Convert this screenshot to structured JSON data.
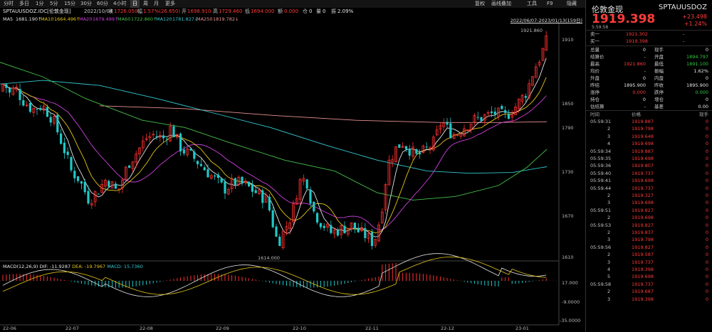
{
  "toolbar": {
    "items": [
      "分时",
      "多日",
      "1分",
      "5分",
      "15分",
      "30分",
      "60分",
      "4小时",
      "日",
      "周",
      "月",
      "更多"
    ],
    "active": "日",
    "right": [
      "复权",
      "画线叠加",
      "工具",
      "F9",
      "隐藏"
    ]
  },
  "info": {
    "symbol": "SPTAUUSDOZ.IDC[伦敦金现]",
    "date": "2022/10/04",
    "close_label": "收",
    "close": "1726.050",
    "change_label": "幅",
    "change": "1.57%(26.650)",
    "open_label": "开",
    "open": "1698.910",
    "high_label": "高",
    "high": "1729.460",
    "low_label": "低",
    "low": "1694.000",
    "vol_label": "额",
    "vol": "0.000",
    "pos_label": "仓",
    "pos": "0",
    "qty_label": "量",
    "qty": "0",
    "amp_label": "振",
    "amp": "2.09%"
  },
  "ma": [
    {
      "name": "MA5",
      "value": "1681.190↑",
      "color": "#e6e6e6"
    },
    {
      "name": "MA10",
      "value": "1664.496↑",
      "color": "#e6c619"
    },
    {
      "name": "MA20",
      "value": "1679.499↑",
      "color": "#d040e0"
    },
    {
      "name": "MA60",
      "value": "1722.860↑",
      "color": "#45c04a"
    },
    {
      "name": "MA120",
      "value": "1781.827↓",
      "color": "#34c8d0"
    },
    {
      "name": "MA250",
      "value": "1819.782↓",
      "color": "#e89090"
    }
  ],
  "date_range": "2022/06/07-2023/01/13(159日)",
  "annotations": {
    "high": "1921.860",
    "low": "1614.000"
  },
  "price_axis": [
    "1910",
    "1850",
    "1790",
    "1730",
    "1670",
    "1610"
  ],
  "macd": {
    "label": "MACD(12,26,9)",
    "dif": "DIF: -11.9287",
    "dea": "DEA: -19.7967",
    "macd": "MACD: 15.7360",
    "axis": [
      "17.000",
      "-9.0000",
      "-35.0000"
    ]
  },
  "x_axis": [
    "22-06",
    "22-07",
    "22-08",
    "22-09",
    "22-10",
    "22-11",
    "22-12",
    "23-01"
  ],
  "panel": {
    "title": "伦敦金现",
    "code": "SPTAUUSDOZ",
    "price": "1919.398",
    "change": "+23.498",
    "change_pct": "+1.24%",
    "time": "5:59:58",
    "bid_label": "卖一",
    "bid": "1921.302",
    "bid_vol": "-",
    "ask_label": "买一",
    "ask": "1919.398",
    "ask_vol": "-",
    "stats": [
      [
        "总量",
        "0",
        "现手",
        "0"
      ],
      [
        "结算价",
        "-",
        "开盘",
        "1894.797"
      ],
      [
        "最高",
        "1921.860",
        "最低",
        "1891.100"
      ],
      [
        "均价",
        "-",
        "振幅",
        "1.62%"
      ],
      [
        "外盘",
        "0",
        "内盘",
        "0"
      ],
      [
        "昨结",
        "1895.900",
        "昨收",
        "1895.900"
      ],
      [
        "涨停",
        "0.000",
        "跌停",
        "0.000"
      ],
      [
        "持仓",
        "0",
        "增仓",
        "0"
      ],
      [
        "估结算",
        "-",
        "基差",
        "0.00"
      ]
    ],
    "tick_headers": [
      "时间",
      "价格",
      "现手"
    ],
    "ticks": [
      [
        "05:59:31",
        "1919.887",
        "0"
      ],
      [
        "2",
        "1919.798",
        "0"
      ],
      [
        "3",
        "1919.648",
        "0"
      ],
      [
        "4",
        "1919.698",
        "0"
      ],
      [
        "05:59:34",
        "1919.887",
        "0"
      ],
      [
        "05:59:35",
        "1919.698",
        "0"
      ],
      [
        "05:59:36",
        "1919.807",
        "0"
      ],
      [
        "05:59:40",
        "1919.737",
        "0"
      ],
      [
        "05:59:41",
        "1919.698",
        "0"
      ],
      [
        "05:59:44",
        "1919.737",
        "0"
      ],
      [
        "2",
        "1919.327",
        "0"
      ],
      [
        "3",
        "1919.698",
        "0"
      ],
      [
        "05:59:51",
        "1919.827",
        "0"
      ],
      [
        "2",
        "1919.698",
        "0"
      ],
      [
        "05:59:53",
        "1919.827",
        "0"
      ],
      [
        "2",
        "1919.837",
        "0"
      ],
      [
        "3",
        "1919.798",
        "0"
      ],
      [
        "05:59:56",
        "1919.827",
        "0"
      ],
      [
        "2",
        "1919.587",
        "0"
      ],
      [
        "3",
        "1919.737",
        "0"
      ],
      [
        "4",
        "1919.398",
        "0"
      ],
      [
        "5",
        "1919.698",
        "0"
      ],
      [
        "05:59:58",
        "1919.737",
        "0"
      ],
      [
        "2",
        "1919.687",
        "0"
      ],
      [
        "3",
        "1919.398",
        "0"
      ]
    ]
  }
}
